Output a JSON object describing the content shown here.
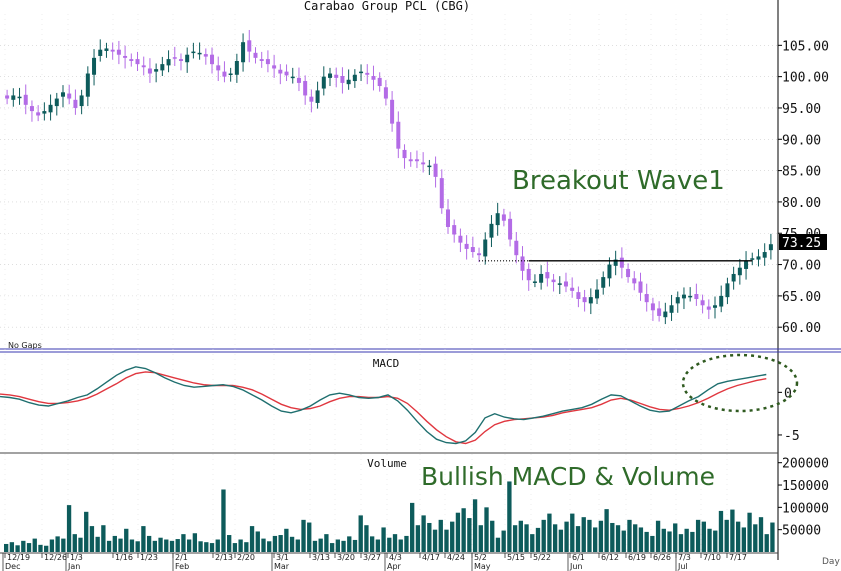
{
  "title": "Carabao Group PCL (CBG)",
  "colors": {
    "up": "#0d5b5b",
    "down": "#b36be6",
    "annotation": "#2f6b2a",
    "macd_line": "#1f6f6f",
    "signal_line": "#e0373f",
    "frame": "#3a3ab0"
  },
  "annotations": {
    "breakout": "Breakout Wave1",
    "bullish": "Bullish MACD & Volume",
    "no_gaps": "No Gaps",
    "price_box": "73.25"
  },
  "chart_data": [
    {
      "type": "candlestick",
      "title": "Carabao Group PCL (CBG)",
      "ylim": [
        57,
        110
      ],
      "yticks": [
        "105.00",
        "100.00",
        "95.00",
        "90.00",
        "85.00",
        "80.00",
        "75.00",
        "70.00",
        "65.00",
        "60.00"
      ],
      "breakout_level": 70.6,
      "last_price": 73.25,
      "closes": [
        96.5,
        97,
        96.8,
        95.5,
        94.5,
        93.8,
        94.5,
        95.5,
        96.5,
        97.5,
        96.5,
        95,
        97,
        100.5,
        103,
        104.3,
        104.5,
        104,
        103.5,
        103,
        102.5,
        102,
        101.5,
        100.5,
        101.2,
        102,
        102.8,
        103,
        102.5,
        103.5,
        104,
        103.8,
        103.2,
        102,
        101,
        100,
        100.5,
        102.5,
        105.5,
        104,
        103,
        102.5,
        102,
        101.3,
        100.5,
        100.2,
        100,
        99,
        97,
        96,
        97.8,
        100,
        100.5,
        99.8,
        99,
        99.5,
        100.3,
        100.8,
        100.3,
        99.5,
        98.5,
        96.5,
        92.5,
        88.5,
        87,
        86.5,
        86.5,
        86,
        85.8,
        84,
        79,
        76,
        74.8,
        73.5,
        72.5,
        72,
        71.5,
        74,
        76.5,
        78.2,
        77,
        74,
        71.5,
        69,
        67.5,
        67.3,
        68.5,
        67.8,
        67.2,
        67,
        66.5,
        65.8,
        64.5,
        64,
        64.8,
        66,
        68,
        70,
        70.8,
        69.5,
        68,
        67,
        65.5,
        64,
        62.7,
        61.8,
        62.5,
        63.5,
        64.8,
        65.2,
        65,
        64.5,
        63.5,
        62.8,
        63.5,
        65,
        67,
        68.5,
        69.5,
        70.5,
        71,
        71.3,
        72,
        73.25
      ],
      "macd": [
        -0.5,
        -0.6,
        -0.8,
        -1.2,
        -1.5,
        -1.6,
        -1.3,
        -1,
        -0.6,
        -0.3,
        0.4,
        1.2,
        2,
        2.6,
        3,
        2.8,
        2.3,
        1.7,
        1.2,
        0.8,
        0.6,
        0.7,
        0.8,
        0.9,
        0.7,
        0.3,
        -0.3,
        -0.9,
        -1.6,
        -2.2,
        -2.4,
        -2.1,
        -1.6,
        -0.9,
        -0.3,
        -0.1,
        -0.3,
        -0.6,
        -0.7,
        -0.6,
        -0.3,
        -1,
        -2.1,
        -3.4,
        -4.6,
        -5.5,
        -5.9,
        -6,
        -5.7,
        -4.7,
        -3,
        -2.5,
        -2.9,
        -3.1,
        -3.2,
        -3,
        -2.8,
        -2.5,
        -2.2,
        -2,
        -1.8,
        -1.4,
        -0.8,
        -0.3,
        -0.4,
        -1,
        -1.6,
        -2.1,
        -2.3,
        -2.2,
        -1.6,
        -1,
        -0.5,
        0.3,
        1,
        1.3,
        1.5,
        1.7,
        1.9,
        2.1
      ],
      "signal": [
        -0.2,
        -0.3,
        -0.5,
        -0.8,
        -1.1,
        -1.3,
        -1.3,
        -1.2,
        -1,
        -0.7,
        -0.2,
        0.4,
        1,
        1.7,
        2.2,
        2.4,
        2.3,
        2,
        1.7,
        1.4,
        1.1,
        0.9,
        0.8,
        0.8,
        0.8,
        0.6,
        0.3,
        -0.2,
        -0.8,
        -1.4,
        -1.8,
        -2,
        -1.9,
        -1.6,
        -1.1,
        -0.7,
        -0.5,
        -0.5,
        -0.6,
        -0.6,
        -0.5,
        -0.7,
        -1.3,
        -2.3,
        -3.4,
        -4.4,
        -5.2,
        -5.8,
        -6,
        -5.6,
        -4.6,
        -3.8,
        -3.4,
        -3.2,
        -3.1,
        -3,
        -2.9,
        -2.7,
        -2.4,
        -2.2,
        -2,
        -1.8,
        -1.4,
        -0.9,
        -0.7,
        -0.9,
        -1.3,
        -1.7,
        -2,
        -2.1,
        -1.9,
        -1.6,
        -1.2,
        -0.7,
        -0.1,
        0.4,
        0.8,
        1.1,
        1.4,
        1.6
      ],
      "macd_ylim": [
        -7,
        4.5
      ],
      "macd_ticks": [
        "0",
        "-5"
      ],
      "volume": [
        18000,
        22000,
        15000,
        25000,
        20000,
        30000,
        16000,
        14000,
        28000,
        35000,
        30000,
        105000,
        40000,
        32000,
        90000,
        58000,
        34000,
        60000,
        25000,
        36000,
        30000,
        52000,
        28000,
        24000,
        58000,
        36000,
        25000,
        32000,
        28000,
        25000,
        29000,
        40000,
        28000,
        42000,
        24000,
        22000,
        20000,
        28000,
        140000,
        38000,
        20000,
        28000,
        22000,
        58000,
        46000,
        30000,
        24000,
        36000,
        38000,
        52000,
        34000,
        28000,
        72000,
        66000,
        25000,
        30000,
        40000,
        20000,
        28000,
        25000,
        35000,
        27000,
        82000,
        60000,
        35000,
        28000,
        55000,
        32000,
        40000,
        28000,
        36000,
        110000,
        60000,
        82000,
        65000,
        50000,
        72000,
        50000,
        68000,
        88000,
        98000,
        76000,
        118000,
        60000,
        100000,
        70000,
        32000,
        48000,
        158000,
        60000,
        70000,
        62000,
        40000,
        54000,
        72000,
        86000,
        62000,
        50000,
        68000,
        86000,
        58000,
        78000,
        72000,
        55000,
        70000,
        96000,
        65000,
        60000,
        48000,
        72000,
        62000,
        55000,
        45000,
        36000,
        70000,
        52000,
        46000,
        64000,
        40000,
        52000,
        45000,
        72000,
        68000,
        52000,
        48000,
        92000,
        72000,
        95000,
        68000,
        55000,
        88000,
        62000,
        78000,
        40000,
        66000
      ],
      "volume_ylim": [
        0,
        215000
      ],
      "volume_ticks": [
        "200000",
        "150000",
        "100000",
        "50000"
      ],
      "volume_label": "Volume",
      "macd_label": "MACD",
      "date_ticks": [
        "12/19",
        "12/26",
        "1/3",
        "1/16",
        "1/23",
        "2/1",
        "2/13",
        "2/20",
        "3/1",
        "3/13",
        "3/20",
        "3/27",
        "4/3",
        "4/17",
        "4/24",
        "5/2",
        "5/15",
        "5/22",
        "6/1",
        "6/12",
        "6/19",
        "6/26",
        "7/3",
        "7/10",
        "7/17"
      ],
      "month_labels": [
        "Dec",
        "Jan",
        "Feb",
        "Mar",
        "Apr",
        "May",
        "Jun",
        "Jul"
      ],
      "x_axis_unit": "Day"
    }
  ]
}
